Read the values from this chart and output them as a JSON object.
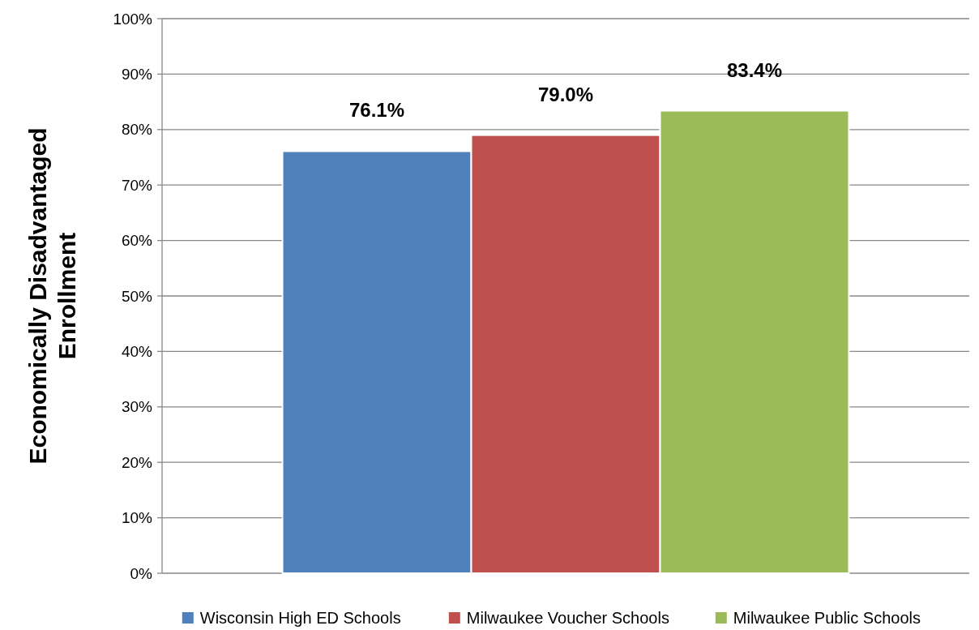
{
  "chart_data": {
    "type": "bar",
    "ylabel": "Economically Disadvantaged Enrollment",
    "categories": [
      null
    ],
    "series": [
      {
        "name": "Wisconsin High ED Schools",
        "color": "#4f81bd",
        "values": [
          76.1
        ],
        "value_labels": [
          "76.1%"
        ]
      },
      {
        "name": "Milwaukee Voucher Schools",
        "color": "#c0504d",
        "values": [
          79.0
        ],
        "value_labels": [
          "79.0%"
        ]
      },
      {
        "name": "Milwaukee Public Schools",
        "color": "#9bbb59",
        "values": [
          83.4
        ],
        "value_labels": [
          "83.4%"
        ]
      }
    ],
    "ylim": [
      0,
      100
    ],
    "yticks": [
      {
        "value": 0,
        "label": "0%"
      },
      {
        "value": 10,
        "label": "10%"
      },
      {
        "value": 20,
        "label": "20%"
      },
      {
        "value": 30,
        "label": "30%"
      },
      {
        "value": 40,
        "label": "40%"
      },
      {
        "value": 50,
        "label": "50%"
      },
      {
        "value": 60,
        "label": "60%"
      },
      {
        "value": 70,
        "label": "70%"
      },
      {
        "value": 80,
        "label": "80%"
      },
      {
        "value": 90,
        "label": "90%"
      },
      {
        "value": 100,
        "label": "100%"
      }
    ],
    "grid": "y",
    "legend": "bottom"
  }
}
